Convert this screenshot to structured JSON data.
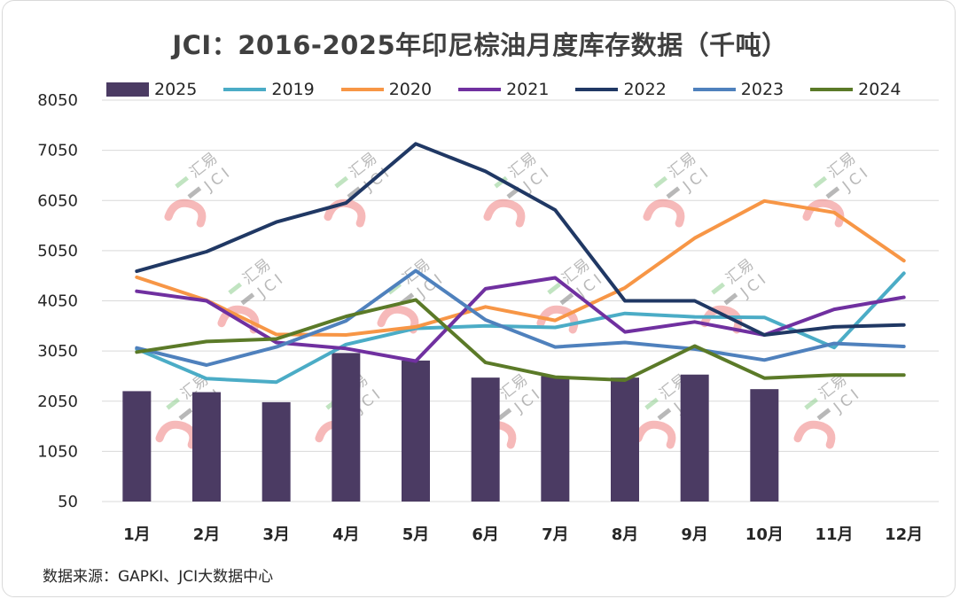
{
  "chart_data": {
    "type": "bar+line",
    "title": "JCI：2016-2025年印尼棕油月度库存数据（千吨）",
    "categories": [
      "1月",
      "2月",
      "3月",
      "4月",
      "5月",
      "6月",
      "7月",
      "8月",
      "9月",
      "10月",
      "11月",
      "12月"
    ],
    "ylim": [
      50,
      8050
    ],
    "yticks": [
      50,
      1050,
      2050,
      3050,
      4050,
      5050,
      6050,
      7050,
      8050
    ],
    "grid": true,
    "legend_position": "top",
    "series": [
      {
        "name": "2025",
        "kind": "bar",
        "color": "#4b3b63",
        "values": [
          2250,
          2230,
          2030,
          3010,
          2860,
          2520,
          2550,
          2520,
          2580,
          2290,
          null,
          null
        ]
      },
      {
        "name": "2019",
        "kind": "line",
        "color": "#4bacc6",
        "values": [
          3090,
          2500,
          2430,
          3180,
          3500,
          3550,
          3520,
          3800,
          3730,
          3720,
          3120,
          4600
        ]
      },
      {
        "name": "2020",
        "kind": "line",
        "color": "#f79646",
        "values": [
          4520,
          4060,
          3380,
          3370,
          3530,
          3930,
          3660,
          4310,
          5300,
          6040,
          5810,
          4850
        ]
      },
      {
        "name": "2021",
        "kind": "line",
        "color": "#7030a0",
        "values": [
          4240,
          4050,
          3220,
          3100,
          2850,
          4290,
          4510,
          3430,
          3630,
          3370,
          3880,
          4120
        ]
      },
      {
        "name": "2022",
        "kind": "line",
        "color": "#203864",
        "values": [
          4640,
          5030,
          5620,
          6000,
          7180,
          6630,
          5860,
          4050,
          4050,
          3370,
          3530,
          3570
        ]
      },
      {
        "name": "2023",
        "kind": "line",
        "color": "#4f81bd",
        "values": [
          3110,
          2770,
          3130,
          3650,
          4650,
          3670,
          3130,
          3220,
          3090,
          2870,
          3200,
          3140
        ]
      },
      {
        "name": "2024",
        "kind": "line",
        "color": "#5b7a28",
        "values": [
          3030,
          3240,
          3290,
          3740,
          4070,
          2820,
          2530,
          2470,
          3150,
          2510,
          2570,
          2570
        ]
      }
    ]
  },
  "source_note": "数据来源：GAPKI、JCI大数据中心",
  "watermark": {
    "line1": "汇易",
    "line2": "JCI"
  }
}
